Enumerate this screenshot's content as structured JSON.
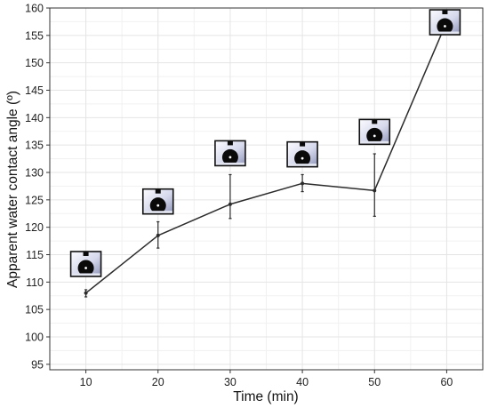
{
  "chart_data": {
    "type": "line",
    "title": "",
    "xlabel": "Time (min)",
    "ylabel": "Apparent water contact angle (º)",
    "xlim": [
      5,
      65
    ],
    "ylim": [
      94,
      160
    ],
    "x_ticks": [
      10,
      20,
      30,
      40,
      50,
      60
    ],
    "y_ticks": [
      95,
      100,
      105,
      110,
      115,
      120,
      125,
      130,
      135,
      140,
      145,
      150,
      155,
      160
    ],
    "x_tick_labels": [
      "10",
      "20",
      "30",
      "40",
      "50",
      "60"
    ],
    "y_tick_labels": [
      "95",
      "100",
      "105",
      "110",
      "115",
      "120",
      "125",
      "130",
      "135",
      "140",
      "145",
      "150",
      "155",
      "160"
    ],
    "grid": true,
    "legend": "none",
    "series": [
      {
        "x": [
          10,
          20,
          30,
          40,
          50,
          60
        ],
        "y": [
          108.0,
          118.5,
          124.2,
          128.0,
          126.7,
          157.5
        ],
        "error_low": [
          107.3,
          116.2,
          121.6,
          126.5,
          122.0,
          157.5
        ],
        "error_high": [
          108.6,
          121.0,
          129.6,
          129.6,
          133.4,
          157.5
        ]
      }
    ],
    "droplet_images": [
      {
        "x": 10,
        "y_center": 113.3
      },
      {
        "x": 20,
        "y_center": 124.7
      },
      {
        "x": 30,
        "y_center": 133.5
      },
      {
        "x": 40,
        "y_center": 133.3
      },
      {
        "x": 50,
        "y_center": 137.4
      },
      {
        "x": 60,
        "y_center": 157.4
      }
    ],
    "colors": {
      "line": "#2b2b2b",
      "grid_major": "#e4e4e4",
      "grid_minor": "#f1f1f1",
      "frame": "#333333",
      "droplet": "#0a0a0a",
      "image_light": "#f5f6fb",
      "image_dark": "#8d93b8"
    }
  }
}
